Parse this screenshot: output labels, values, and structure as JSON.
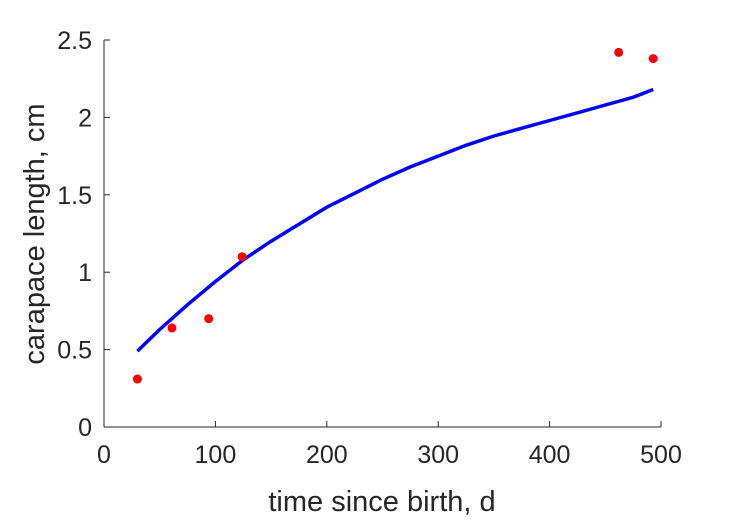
{
  "chart_data": {
    "type": "scatter",
    "title": "",
    "xlabel": "time since birth, d",
    "ylabel": "carapace length, cm",
    "xlim": [
      0,
      500
    ],
    "ylim": [
      0,
      2.5
    ],
    "xticks": [
      0,
      100,
      200,
      300,
      400,
      500
    ],
    "yticks": [
      0,
      0.5,
      1,
      1.5,
      2,
      2.5
    ],
    "xtick_labels": [
      "0",
      "100",
      "200",
      "300",
      "400",
      "500"
    ],
    "ytick_labels": [
      "0",
      "0.5",
      "1",
      "1.5",
      "2",
      "2.5"
    ],
    "grid": false,
    "legend": "none",
    "series": [
      {
        "kind": "points",
        "color": "#ff0000",
        "x": [
          30,
          61,
          94,
          124,
          462,
          493
        ],
        "y": [
          0.31,
          0.64,
          0.7,
          1.1,
          2.42,
          2.38
        ]
      },
      {
        "kind": "line",
        "color": "#0000ff",
        "x": [
          30,
          50,
          75,
          100,
          125,
          150,
          175,
          200,
          225,
          250,
          275,
          300,
          325,
          350,
          375,
          400,
          425,
          450,
          475,
          493
        ],
        "y": [
          0.49,
          0.63,
          0.79,
          0.94,
          1.08,
          1.2,
          1.31,
          1.42,
          1.51,
          1.6,
          1.68,
          1.75,
          1.82,
          1.88,
          1.93,
          1.98,
          2.03,
          2.08,
          2.13,
          2.18
        ]
      }
    ]
  }
}
